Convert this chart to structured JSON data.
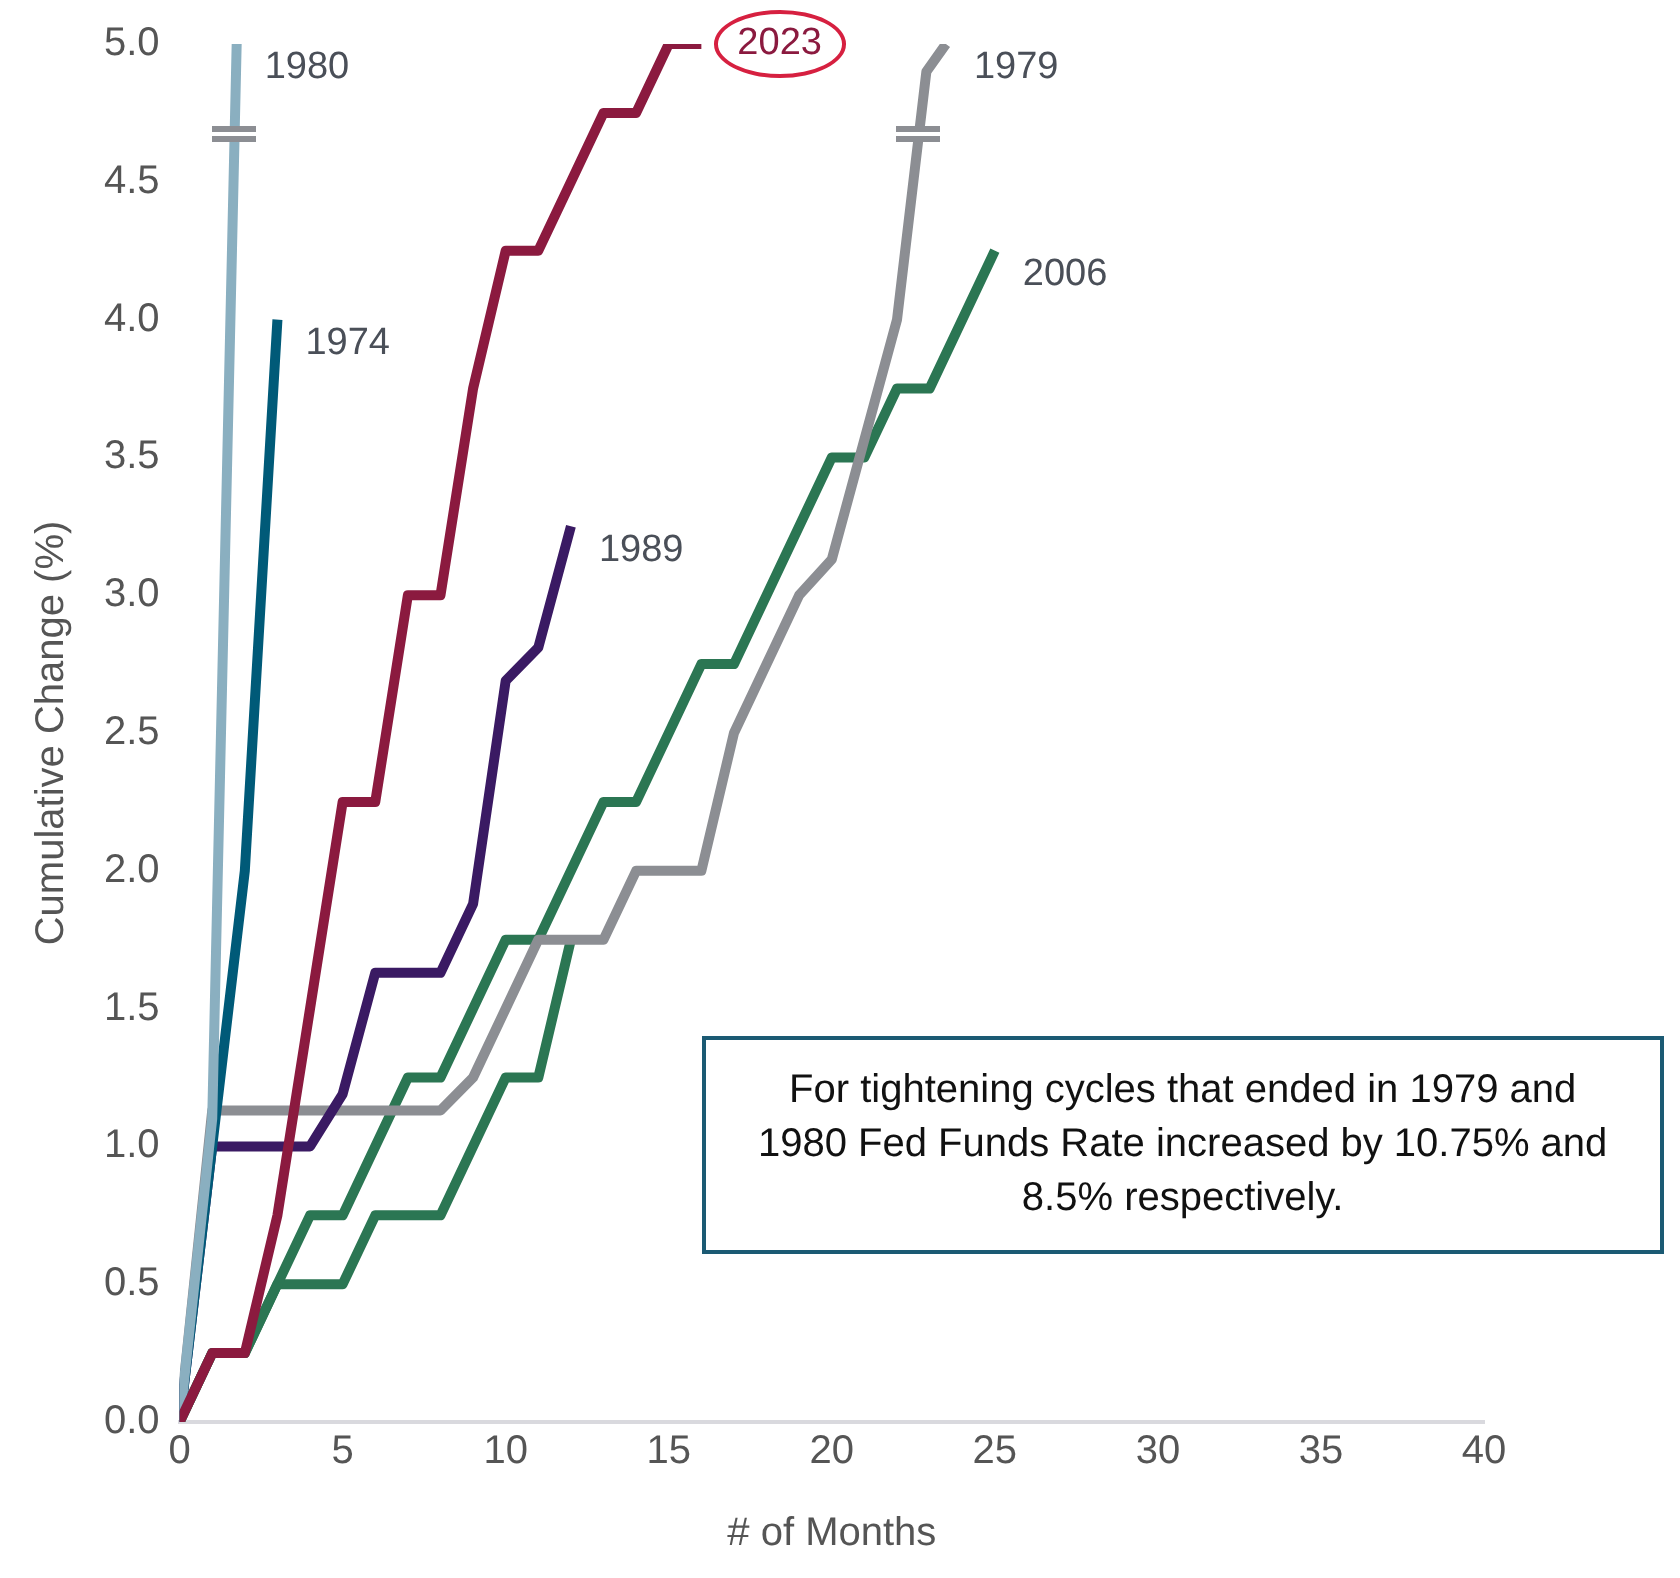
{
  "chart_data": {
    "type": "line",
    "xlabel": "# of Months",
    "ylabel": "Cumulative Change (%)",
    "xlim": [
      0,
      40
    ],
    "xticks": [
      0,
      5,
      10,
      15,
      20,
      25,
      30,
      35,
      40
    ],
    "ylim": [
      0,
      5
    ],
    "yticks": [
      {
        "value": 0,
        "label": "0.0"
      },
      {
        "value": 0.5,
        "label": "0.5"
      },
      {
        "value": 1,
        "label": "1.0"
      },
      {
        "value": 1.5,
        "label": "1.5"
      },
      {
        "value": 2,
        "label": "2.0"
      },
      {
        "value": 2.5,
        "label": "2.5"
      },
      {
        "value": 3,
        "label": "3.0"
      },
      {
        "value": 3.5,
        "label": "3.5"
      },
      {
        "value": 4,
        "label": "4.0"
      },
      {
        "value": 4.5,
        "label": "4.5"
      },
      {
        "value": 5,
        "label": "5.0"
      }
    ],
    "grid": false,
    "legend": false,
    "marker": "none",
    "line_style": "solid",
    "series": [
      {
        "name": "2023",
        "color": "#8b1a3f",
        "x": [
          0,
          1,
          2,
          3,
          4,
          5,
          6,
          7,
          8,
          9,
          10,
          11,
          12,
          13,
          14,
          15,
          16
        ],
        "values": [
          0,
          0.25,
          0.25,
          0.75,
          1.5,
          2.25,
          2.25,
          3.0,
          3.0,
          3.75,
          4.25,
          4.25,
          4.5,
          4.75,
          4.75,
          5.0,
          5.0
        ]
      },
      {
        "name": "1980",
        "color": "#8aafc0",
        "x": [
          0,
          1,
          1.75
        ],
        "values": [
          0,
          1.1,
          5.0
        ]
      },
      {
        "name": "1974",
        "color": "#005a78",
        "x": [
          0,
          1,
          2,
          3
        ],
        "values": [
          0,
          1.0,
          2.0,
          4.0
        ]
      },
      {
        "name": "1989",
        "color": "#3a1a63",
        "x": [
          0,
          1,
          4,
          5,
          6,
          8,
          9,
          10,
          11,
          12
        ],
        "values": [
          0,
          1.0,
          1.0,
          1.19,
          1.63,
          1.63,
          1.88,
          2.69,
          2.81,
          3.25
        ]
      },
      {
        "name": "1979",
        "color": "#8c8e93",
        "x": [
          0,
          1,
          8,
          9,
          11,
          13,
          14,
          16,
          17,
          19,
          20,
          22,
          22.9,
          23.5
        ],
        "values": [
          0,
          1.13,
          1.13,
          1.25,
          1.75,
          1.75,
          2.0,
          2.0,
          2.5,
          3.0,
          3.13,
          4.0,
          4.9,
          5.0
        ]
      },
      {
        "name": "2006",
        "color": "#2b7653",
        "x": [
          0,
          1,
          2,
          3,
          4,
          5,
          7,
          8,
          10,
          11,
          13,
          14,
          16,
          17,
          20,
          21,
          22,
          23,
          25
        ],
        "values": [
          0,
          0.25,
          0.25,
          0.5,
          0.75,
          0.75,
          1.25,
          1.25,
          1.75,
          1.75,
          2.25,
          2.25,
          2.75,
          2.75,
          3.5,
          3.5,
          3.75,
          3.75,
          4.25
        ]
      },
      {
        "color": "#2b7653",
        "x": [
          0,
          1,
          2,
          3,
          5,
          6,
          8,
          10,
          11,
          12
        ],
        "values": [
          0,
          0.25,
          0.25,
          0.5,
          0.5,
          0.75,
          0.75,
          1.25,
          1.25,
          1.75
        ]
      }
    ],
    "annotations": [
      "For tightening cycles that ended in 1979 and 1980 Fed Funds Rate increased by 10.75% and 8.5% respectively."
    ]
  }
}
